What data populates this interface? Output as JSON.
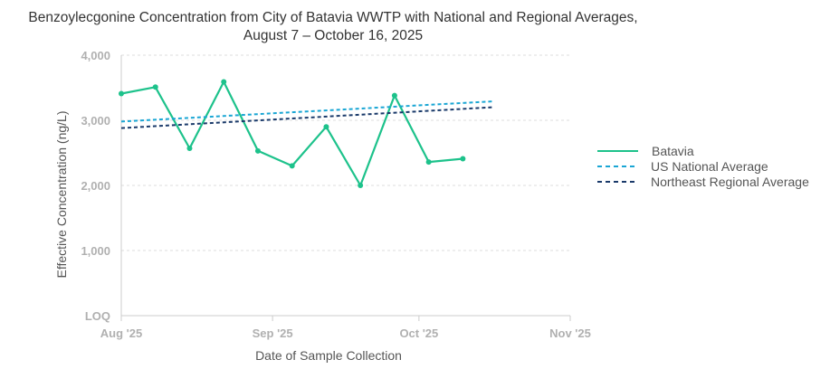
{
  "chart_data": {
    "type": "line",
    "title": "Benzoylecgonine Concentration from City of Batavia WWTP with National and Regional Averages,",
    "subtitle": "August 7 – October 16, 2025",
    "xlabel": "Date of Sample Collection",
    "ylabel": "Effective Concentration (ng/L)",
    "x_axis": {
      "type": "date",
      "range": [
        "2025-08-01",
        "2025-11-01"
      ],
      "ticks": [
        {
          "date": "2025-08-01",
          "label": "Aug '25"
        },
        {
          "date": "2025-09-01",
          "label": "Sep '25"
        },
        {
          "date": "2025-10-01",
          "label": "Oct '25"
        },
        {
          "date": "2025-11-01",
          "label": "Nov '25"
        }
      ]
    },
    "y_axis": {
      "range": [
        0,
        4000
      ],
      "ticks": [
        {
          "value": 0,
          "label": "LOQ"
        },
        {
          "value": 1000,
          "label": "1,000"
        },
        {
          "value": 2000,
          "label": "2,000"
        },
        {
          "value": 3000,
          "label": "3,000"
        },
        {
          "value": 4000,
          "label": "4,000"
        }
      ]
    },
    "grid": true,
    "legend_position": "right",
    "series": [
      {
        "name": "Batavia",
        "color": "#1dc28b",
        "style": "solid",
        "markers": true,
        "points": [
          {
            "x": "2025-08-01",
            "y": 3410
          },
          {
            "x": "2025-08-08",
            "y": 3510
          },
          {
            "x": "2025-08-15",
            "y": 2570
          },
          {
            "x": "2025-08-22",
            "y": 3590
          },
          {
            "x": "2025-08-29",
            "y": 2530
          },
          {
            "x": "2025-09-05",
            "y": 2300
          },
          {
            "x": "2025-09-12",
            "y": 2900
          },
          {
            "x": "2025-09-19",
            "y": 2000
          },
          {
            "x": "2025-09-26",
            "y": 3380
          },
          {
            "x": "2025-10-03",
            "y": 2360
          },
          {
            "x": "2025-10-10",
            "y": 2410
          }
        ]
      },
      {
        "name": "US National Average",
        "color": "#1aa6d4",
        "style": "dashed",
        "markers": false,
        "points": [
          {
            "x": "2025-08-01",
            "y": 2980
          },
          {
            "x": "2025-10-16",
            "y": 3290
          }
        ]
      },
      {
        "name": "Northeast Regional Average",
        "color": "#1a3a6a",
        "style": "dashed",
        "markers": false,
        "points": [
          {
            "x": "2025-08-01",
            "y": 2880
          },
          {
            "x": "2025-10-16",
            "y": 3200
          }
        ]
      }
    ]
  }
}
